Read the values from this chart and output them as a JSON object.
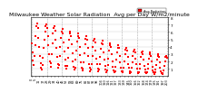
{
  "title": "Milwaukee Weather Solar Radiation",
  "subtitle": "Avg per Day W/m2/minute",
  "background_color": "#ffffff",
  "plot_bg_color": "#ffffff",
  "marker_color": "#ff0000",
  "marker_size": 1.8,
  "grid_color": "#aaaaaa",
  "grid_style": "--",
  "y_values": [
    4.5,
    3.2,
    2.1,
    1.5,
    2.8,
    4.2,
    5.5,
    6.8,
    7.1,
    6.5,
    5.2,
    4.0,
    2.8,
    1.8,
    1.2,
    0.9,
    1.5,
    2.5,
    3.8,
    5.0,
    6.0,
    6.8,
    7.0,
    6.5,
    5.5,
    4.2,
    3.0,
    2.0,
    1.3,
    1.8,
    3.0,
    4.5,
    5.8,
    6.5,
    6.8,
    6.2,
    5.0,
    3.8,
    2.6,
    1.6,
    1.1,
    1.5,
    2.8,
    4.0,
    5.2,
    6.0,
    6.4,
    5.8,
    4.6,
    3.4,
    2.2,
    1.4,
    1.0,
    1.4,
    2.5,
    3.8,
    5.0,
    5.8,
    6.0,
    5.5,
    4.3,
    3.1,
    2.0,
    1.3,
    0.9,
    1.2,
    2.2,
    3.5,
    4.7,
    5.5,
    5.8,
    5.2,
    4.0,
    2.9,
    1.9,
    1.2,
    0.8,
    1.0,
    1.9,
    3.1,
    4.3,
    5.1,
    5.5,
    5.0,
    3.8,
    2.7,
    1.7,
    1.1,
    0.7,
    0.9,
    1.7,
    2.8,
    4.0,
    4.8,
    5.1,
    4.6,
    3.5,
    2.4,
    1.6,
    1.0,
    0.7,
    0.9,
    1.6,
    2.6,
    3.7,
    4.5,
    4.8,
    4.3,
    3.2,
    2.2,
    1.4,
    0.9,
    0.6,
    0.8,
    1.5,
    2.4,
    3.5,
    4.2,
    4.5,
    4.0,
    3.0,
    2.0,
    1.3,
    0.8,
    0.5,
    0.7,
    1.3,
    2.2,
    3.2,
    3.9,
    4.2,
    3.8,
    2.8,
    1.9,
    1.2,
    0.7,
    0.5,
    0.7,
    1.2,
    2.0,
    3.0,
    3.6,
    3.9,
    3.5,
    2.6,
    1.7,
    1.1,
    0.7,
    0.4,
    0.6,
    1.1,
    1.9,
    2.8,
    3.4,
    3.6,
    3.2,
    2.4,
    1.6,
    1.0,
    0.6,
    0.4,
    0.6,
    1.0,
    1.7,
    2.6,
    3.2,
    3.4,
    3.0,
    2.2,
    1.4,
    0.9,
    0.5,
    0.4,
    0.5,
    1.0,
    1.6,
    2.4,
    3.0,
    3.2,
    2.8,
    2.0,
    1.3,
    0.8,
    0.5,
    0.3,
    0.5,
    0.9,
    1.5,
    2.2,
    2.8,
    3.0,
    2.6,
    1.9,
    1.2,
    0.7,
    0.4,
    0.3,
    0.4,
    0.8,
    1.4,
    2.0,
    2.6,
    2.8,
    2.5
  ],
  "ylim": [
    0,
    8
  ],
  "ytick_labels": [
    "8",
    "7",
    "6",
    "5",
    "4",
    "3",
    "2",
    "1"
  ],
  "ytick_vals": [
    8,
    7,
    6,
    5,
    4,
    3,
    2,
    1
  ],
  "n_vgrid": 9,
  "legend_label": "Avg Radiation",
  "legend_color": "#ff0000",
  "title_fontsize": 4.5,
  "tick_fontsize": 3.0,
  "xtick_fontsize": 2.5
}
